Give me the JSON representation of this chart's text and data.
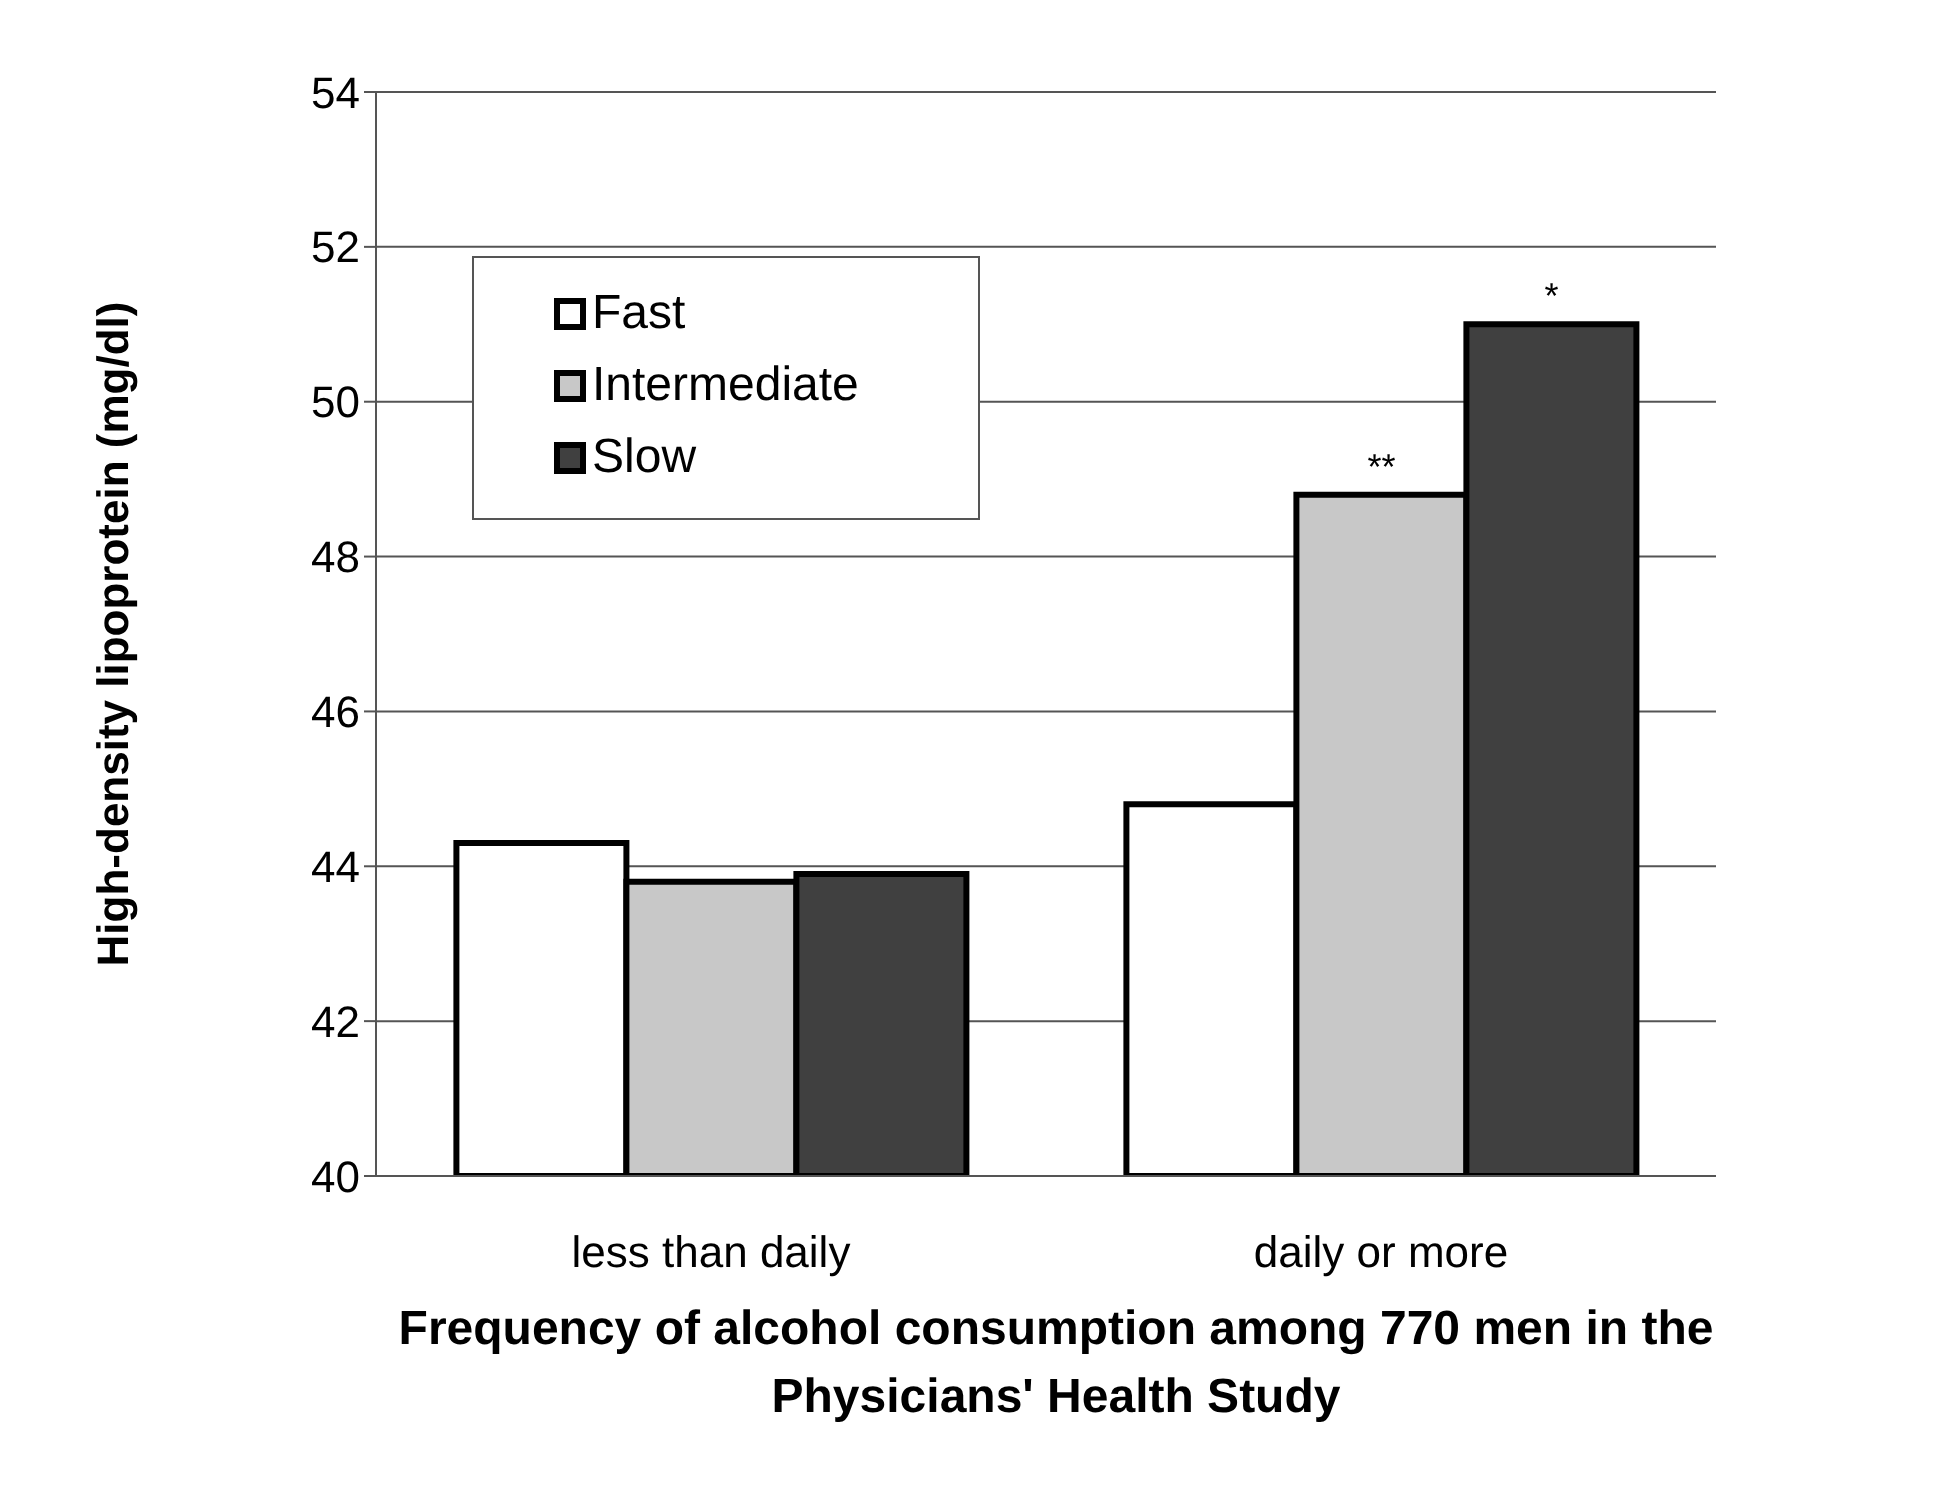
{
  "chart_data": {
    "type": "bar",
    "xlabel": "Frequency of alcohol consumption among 770 men in the Physicians' Health Study",
    "ylabel": "High-density lipoprotein (mg/dl)",
    "categories": [
      "less than daily",
      "daily or more"
    ],
    "series": [
      {
        "name": "Fast",
        "color": "#ffffff",
        "values": [
          44.3,
          44.8
        ]
      },
      {
        "name": "Intermediate",
        "color": "#c8c8c8",
        "values": [
          43.8,
          48.8
        ]
      },
      {
        "name": "Slow",
        "color": "#404040",
        "values": [
          43.9,
          51.0
        ]
      }
    ],
    "ylim": [
      40,
      54
    ],
    "yticks": [
      40,
      42,
      44,
      46,
      48,
      50,
      52,
      54
    ],
    "grid": "y",
    "legend": "top left",
    "annotations": [
      {
        "text": "**",
        "x": "daily or more",
        "y": 48.8
      },
      "*"
    ]
  }
}
